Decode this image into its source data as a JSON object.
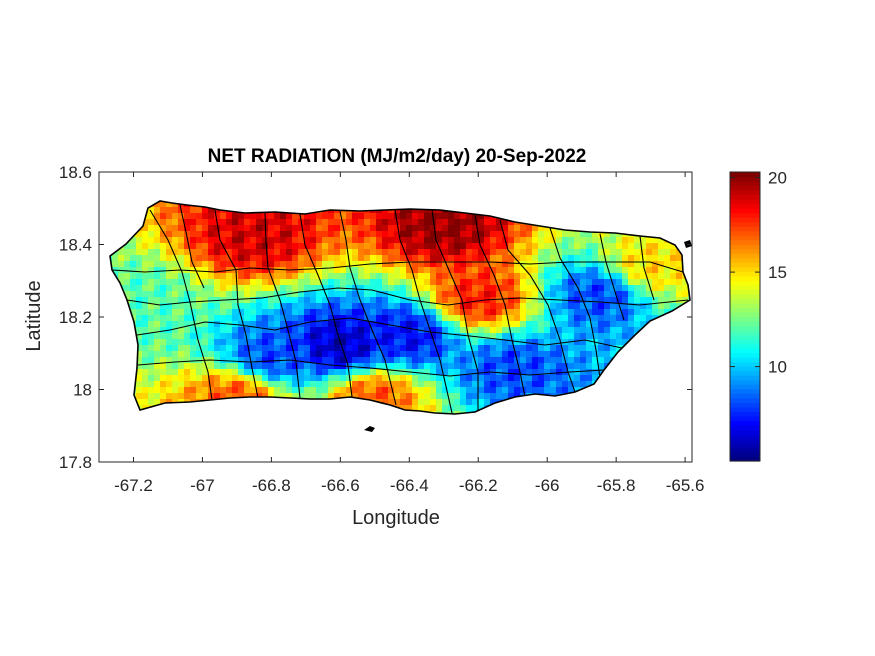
{
  "chart_data": {
    "type": "heatmap",
    "title": "NET RADIATION (MJ/m2/day) 20-Sep-2022",
    "xlabel": "Longitude",
    "ylabel": "Latitude",
    "xlim": [
      -67.3,
      -65.58
    ],
    "ylim": [
      17.8,
      18.6
    ],
    "xticks": [
      -67.2,
      -67,
      -66.8,
      -66.6,
      -66.4,
      -66.2,
      -66,
      -65.8,
      -65.6
    ],
    "xtick_labels": [
      "-67.2",
      "-67",
      "-66.8",
      "-66.6",
      "-66.4",
      "-66.2",
      "-66",
      "-65.8",
      "-65.6"
    ],
    "yticks": [
      17.8,
      18,
      18.2,
      18.4,
      18.6
    ],
    "ytick_labels": [
      "17.8",
      "18",
      "18.2",
      "18.4",
      "18.6"
    ],
    "colorbar": {
      "colormap": "jet",
      "clim": [
        5,
        20.3
      ],
      "ticks": [
        10,
        15,
        20
      ],
      "tick_labels": [
        "10",
        "15",
        "20"
      ]
    },
    "region": "Puerto Rico municipalities",
    "field_features": [
      {
        "lon": -67.17,
        "lat": 18.24,
        "value": 12
      },
      {
        "lon": -66.85,
        "lat": 18.42,
        "value": 19
      },
      {
        "lon": -66.3,
        "lat": 18.45,
        "value": 20
      },
      {
        "lon": -66.6,
        "lat": 18.12,
        "value": 6
      },
      {
        "lon": -66.8,
        "lat": 18.09,
        "value": 8
      },
      {
        "lon": -66.4,
        "lat": 18.15,
        "value": 7
      },
      {
        "lon": -66.1,
        "lat": 18.06,
        "value": 8
      },
      {
        "lon": -65.85,
        "lat": 18.26,
        "value": 8
      },
      {
        "lon": -66.2,
        "lat": 18.25,
        "value": 18
      },
      {
        "lon": -66.9,
        "lat": 17.98,
        "value": 17
      },
      {
        "lon": -66.5,
        "lat": 17.98,
        "value": 17
      },
      {
        "lon": -65.7,
        "lat": 18.34,
        "value": 15
      }
    ]
  },
  "colors": {
    "axis": "#262626",
    "boundary": "#000000",
    "background": "#ffffff"
  }
}
